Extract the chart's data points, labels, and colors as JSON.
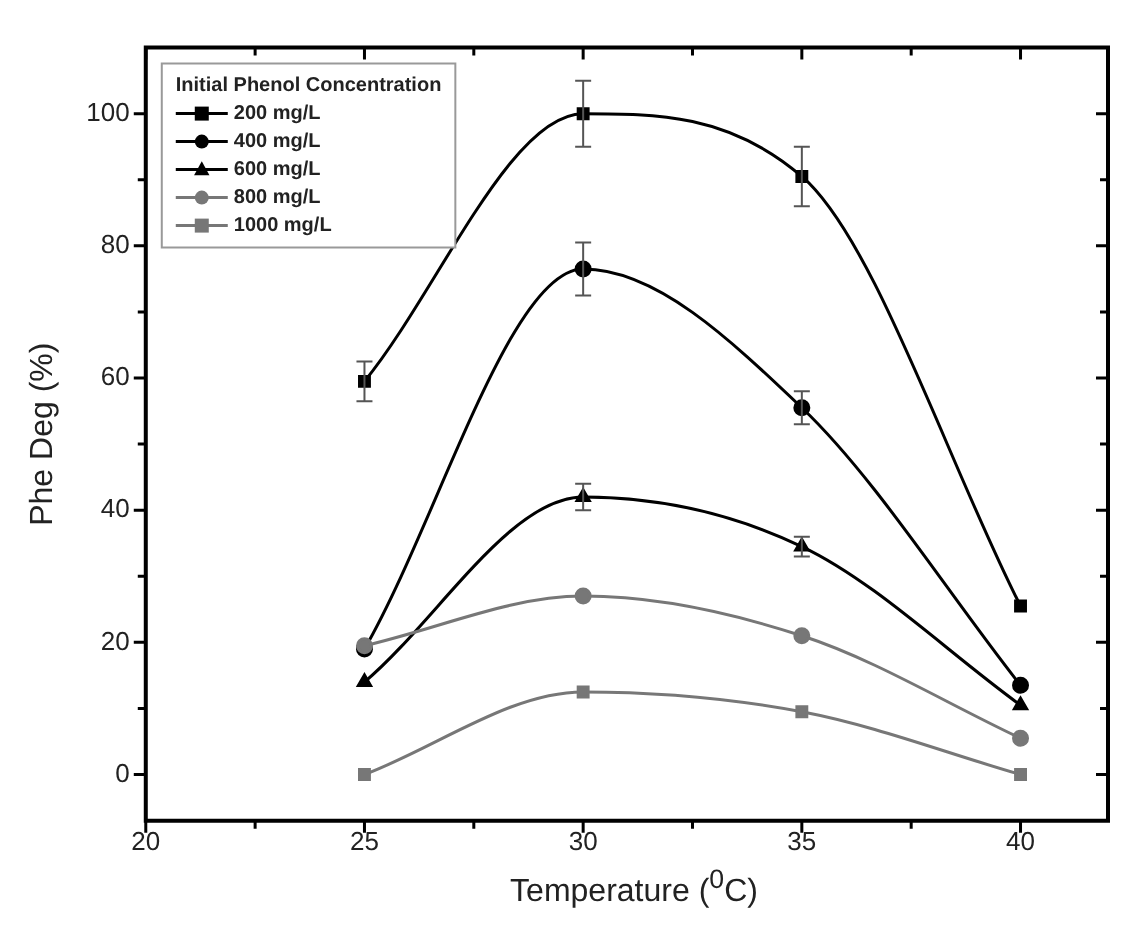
{
  "chart_data": {
    "type": "line",
    "xlabel": "Temperature ($^{0}$C)",
    "ylabel": "Phe Deg (%)",
    "legend_title": "Initial Phenol Concentration",
    "x": [
      25,
      30,
      35,
      40
    ],
    "xlim": [
      20,
      42
    ],
    "xticks": [
      20,
      {
        "value": 22.5,
        "label": null
      },
      25,
      {
        "value": 27.5,
        "label": null
      },
      30,
      {
        "value": 32.5,
        "label": null
      },
      35,
      {
        "value": 37.5,
        "label": null
      },
      40
    ],
    "ylim": [
      -7,
      110
    ],
    "yticks": [
      0,
      {
        "value": 10,
        "label": null
      },
      20,
      {
        "value": 30,
        "label": null
      },
      40,
      {
        "value": 50,
        "label": null
      },
      60,
      {
        "value": 70,
        "label": null
      },
      80,
      {
        "value": 90,
        "label": null
      },
      100
    ],
    "grid": false,
    "legend": "top left",
    "line_style": "solid",
    "series": [
      {
        "name": "200 mg/L",
        "color": "#000000",
        "marker": "square",
        "values": [
          59.5,
          100,
          90.5,
          25.5
        ],
        "errors": [
          3,
          5,
          4.5,
          null
        ]
      },
      {
        "name": "400 mg/L",
        "color": "#000000",
        "marker": "circle",
        "values": [
          19,
          76.5,
          55.5,
          13.5
        ],
        "errors": [
          null,
          4,
          2.5,
          null
        ]
      },
      {
        "name": "600 mg/L",
        "color": "#000000",
        "marker": "triangle",
        "values": [
          14,
          42,
          34.5,
          10.5
        ],
        "errors": [
          null,
          2,
          1.5,
          null
        ]
      },
      {
        "name": "800 mg/L",
        "color": "#777777",
        "marker": "circle",
        "values": [
          19.5,
          27,
          21,
          5.5
        ]
      },
      {
        "name": "1000 mg/L",
        "color": "#777777",
        "marker": "square",
        "values": [
          0,
          12.5,
          9.5,
          0
        ]
      }
    ]
  }
}
